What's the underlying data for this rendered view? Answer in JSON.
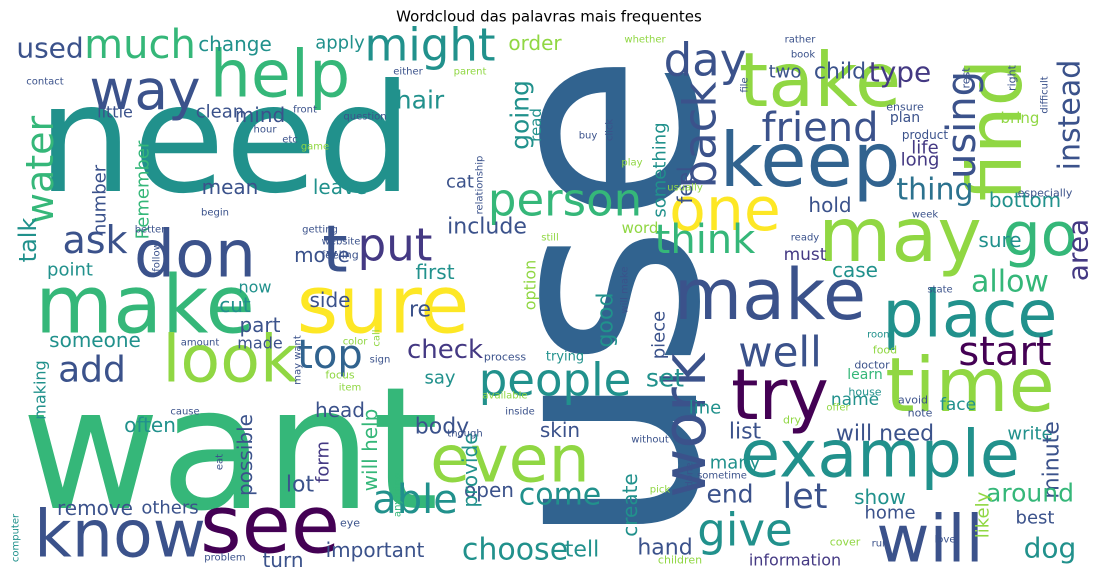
{
  "chart_data": {
    "type": "wordcloud",
    "title": "Wordcloud das palavras mais frequentes",
    "words": [
      "need",
      "use",
      "want",
      "make",
      "sure",
      "know",
      "see",
      "help",
      "way",
      "much",
      "used",
      "don",
      "t",
      "put",
      "ask",
      "water",
      "talk",
      "point",
      "add",
      "look",
      "top",
      "might",
      "hair",
      "person",
      "people",
      "even",
      "able",
      "come",
      "choose",
      "important",
      "check",
      "say",
      "take",
      "keep",
      "friend",
      "find",
      "day",
      "back",
      "using",
      "one",
      "may",
      "go",
      "make",
      "place",
      "try",
      "time",
      "work",
      "example",
      "will",
      "give",
      "let",
      "well",
      "start",
      "think",
      "allow",
      "area",
      "instead",
      "type",
      "child",
      "two",
      "thing",
      "life",
      "long",
      "bottom",
      "sure",
      "hold",
      "case",
      "must",
      "face",
      "learn",
      "name",
      "list",
      "line",
      "will need",
      "write",
      "minute",
      "around",
      "end",
      "show",
      "home",
      "best",
      "dog",
      "likely",
      "information",
      "hand",
      "many",
      "tell",
      "open",
      "create",
      "provide",
      "will help",
      "lot",
      "form",
      "body",
      "head",
      "possible",
      "often",
      "remove",
      "others",
      "turn",
      "skin",
      "set",
      "piece",
      "good",
      "option",
      "include",
      "first",
      "side",
      "move",
      "now",
      "cut",
      "part",
      "made",
      "re",
      "someone",
      "making",
      "mean",
      "leave",
      "mind",
      "clean",
      "little",
      "number",
      "Remember",
      "change",
      "apply",
      "order",
      "going",
      "something",
      "feel",
      "cat",
      "read",
      "word",
      "plan",
      "bring",
      "product",
      "ensure",
      "especially",
      "rest",
      "difficult",
      "right",
      "week",
      "ready",
      "state",
      "room",
      "food",
      "doctor",
      "avoid",
      "note",
      "house",
      "offer",
      "dry",
      "sometime",
      "process",
      "trying",
      "available",
      "inside",
      "though",
      "without",
      "done",
      "pick",
      "children",
      "cover",
      "run",
      "love",
      "computer",
      "eye",
      "problem",
      "anything",
      "eat",
      "cause",
      "focus",
      "item",
      "color",
      "sign",
      "amount",
      "may want",
      "call",
      "feeling",
      "website",
      "getting",
      "follow",
      "better",
      "begin",
      "game",
      "etc",
      "hour",
      "front",
      "question",
      "relationship",
      "still",
      "usually",
      "buy",
      "click",
      "file",
      "book",
      "rather",
      "whether",
      "parent",
      "either",
      "contact",
      "will make",
      "play"
    ]
  }
}
